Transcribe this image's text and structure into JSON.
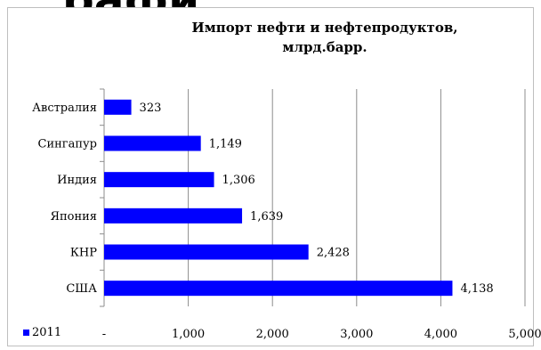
{
  "heading_fragment": "рафи",
  "chart_data": {
    "type": "bar",
    "orientation": "horizontal",
    "title": "Импорт нефти и нефтепродуктов, млрд.барр.",
    "categories": [
      "Австралия",
      "Сингапур",
      "Индия",
      "Япония",
      "КНР",
      "США"
    ],
    "series": [
      {
        "name": "2011",
        "values": [
          323,
          1149,
          1306,
          1639,
          2428,
          4138
        ],
        "color": "#0000ff"
      }
    ],
    "value_labels": [
      "323",
      "1,149",
      "1,306",
      "1,639",
      "2,428",
      "4,138"
    ],
    "xlim": [
      0,
      5000
    ],
    "xticks": [
      0,
      1000,
      2000,
      3000,
      4000,
      5000
    ],
    "xtick_labels": [
      "-",
      "1,000",
      "2,000",
      "3,000",
      "4,000",
      "5,000"
    ],
    "grid": true,
    "legend_position": "bottom-left"
  }
}
